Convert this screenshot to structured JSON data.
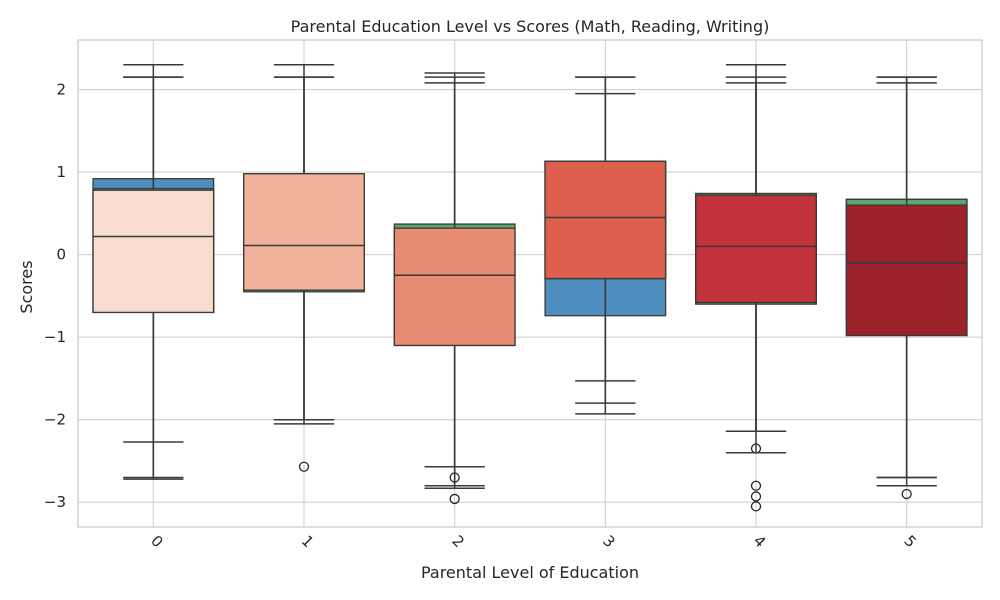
{
  "chart_data": {
    "type": "boxplot",
    "title": "Parental Education Level vs Scores (Math, Reading, Writing)",
    "xlabel": "Parental Level of Education",
    "ylabel": "Scores",
    "ylim": [
      -3.3,
      2.6
    ],
    "yticks": [
      -3,
      -2,
      -1,
      0,
      1,
      2
    ],
    "ytick_labels": [
      "−3",
      "−2",
      "−1",
      "0",
      "1",
      "2"
    ],
    "grid": true,
    "categories": [
      "0",
      "1",
      "2",
      "3",
      "4",
      "5"
    ],
    "series": [
      {
        "color": "#4f8fc0",
        "boxes": [
          {
            "q1": -0.7,
            "median": 0.15,
            "q3": 0.92,
            "whisker_low": -2.7,
            "whisker_high": 2.3,
            "outliers": []
          },
          {
            "q1": -0.43,
            "median": 0.38,
            "q3": 0.98,
            "whisker_low": -2.0,
            "whisker_high": 2.3,
            "outliers": []
          },
          {
            "q1": -1.1,
            "median": -0.25,
            "q3": 0.32,
            "whisker_low": -2.8,
            "whisker_high": 2.2,
            "outliers": []
          },
          {
            "q1": -0.74,
            "median": -0.29,
            "q3": 1.13,
            "whisker_low": -1.93,
            "whisker_high": 2.15,
            "outliers": []
          },
          {
            "q1": -0.55,
            "median": 0.1,
            "q3": 0.74,
            "whisker_low": -2.14,
            "whisker_high": 2.3,
            "outliers": [
              -2.35,
              -2.8,
              -2.93,
              -3.05
            ]
          },
          {
            "q1": -0.8,
            "median": -0.18,
            "q3": 0.67,
            "whisker_low": -2.7,
            "whisker_high": 2.15,
            "outliers": []
          }
        ]
      },
      {
        "color": "#5ea66a",
        "boxes": [
          {
            "q1": -0.7,
            "median": 0.03,
            "q3": 0.8,
            "whisker_low": -2.72,
            "whisker_high": 2.15,
            "outliers": []
          },
          {
            "q1": -0.45,
            "median": 0.24,
            "q3": 0.98,
            "whisker_low": -2.05,
            "whisker_high": 2.15,
            "outliers": []
          },
          {
            "q1": -1.1,
            "median": -0.3,
            "q3": 0.37,
            "whisker_low": -2.83,
            "whisker_high": 2.08,
            "outliers": []
          },
          {
            "q1": -0.29,
            "median": 0.45,
            "q3": 1.13,
            "whisker_low": -1.8,
            "whisker_high": 1.95,
            "outliers": []
          },
          {
            "q1": -0.6,
            "median": 0.1,
            "q3": 0.74,
            "whisker_low": -2.4,
            "whisker_high": 2.08,
            "outliers": []
          },
          {
            "q1": -0.98,
            "median": -0.1,
            "q3": 0.67,
            "whisker_low": -2.8,
            "whisker_high": 2.08,
            "outliers": [
              -2.9
            ]
          }
        ]
      },
      {
        "color": "#de3a2e",
        "boxes": [
          {
            "q1": -0.7,
            "median": 0.22,
            "q3": 0.78,
            "whisker_low": -2.27,
            "whisker_high": 2.15,
            "outliers": []
          },
          {
            "q1": -0.43,
            "median": 0.11,
            "q3": 0.98,
            "whisker_low": -2.0,
            "whisker_high": 2.15,
            "outliers": [
              -2.57
            ]
          },
          {
            "q1": -1.1,
            "median": -0.25,
            "q3": 0.32,
            "whisker_low": -2.57,
            "whisker_high": 2.15,
            "outliers": [
              -2.7,
              -2.96
            ]
          },
          {
            "q1": -0.29,
            "median": 0.45,
            "q3": 1.13,
            "whisker_low": -1.53,
            "whisker_high": 2.15,
            "outliers": []
          },
          {
            "q1": -0.58,
            "median": 0.1,
            "q3": 0.72,
            "whisker_low": -2.14,
            "whisker_high": 2.15,
            "outliers": []
          },
          {
            "q1": -0.98,
            "median": -0.1,
            "q3": 0.6,
            "whisker_low": -2.7,
            "whisker_high": 2.15,
            "outliers": []
          }
        ]
      }
    ],
    "category_fill_colors": [
      "#f8dcd0",
      "#f1b29b",
      "#e88c74",
      "#de5f4e",
      "#c1323a",
      "#9b212a"
    ]
  }
}
